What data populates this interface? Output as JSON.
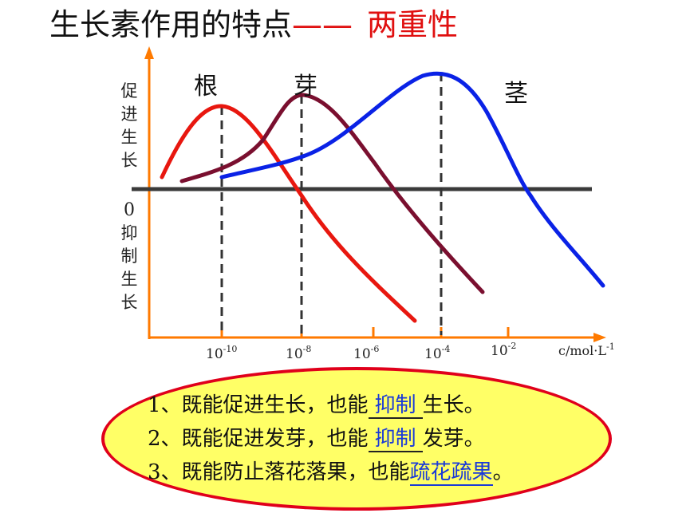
{
  "title": {
    "main": "生长素作用的特点",
    "dash": "——",
    "highlight": "两重性"
  },
  "y_axis": {
    "upper_label": [
      "促",
      "进",
      "生",
      "长"
    ],
    "zero_label": "0",
    "lower_label": [
      "抑",
      "制",
      "生",
      "长"
    ]
  },
  "x_axis": {
    "ticks": [
      {
        "base": "10",
        "exp": "-10"
      },
      {
        "base": "10",
        "exp": "-8"
      },
      {
        "base": "10",
        "exp": "-6"
      },
      {
        "base": "10",
        "exp": "-4"
      },
      {
        "base": "10",
        "exp": "-2"
      }
    ],
    "unit_prefix": "c/mol·L",
    "unit_exp": "-1"
  },
  "curves": [
    {
      "label": "根",
      "color": "#e8170f",
      "optimum": "10^-10"
    },
    {
      "label": "芽",
      "color": "#7a0f2f",
      "optimum": "10^-8"
    },
    {
      "label": "茎",
      "color": "#0a22e6",
      "optimum": "10^-4"
    }
  ],
  "sentences": [
    {
      "prefix": "1、既能促进生长，也能",
      "blank": "抑制",
      "suffix": "生长。"
    },
    {
      "prefix": "2、既能促进发芽，也能",
      "blank": "抑制",
      "suffix": "发芽。"
    },
    {
      "prefix": "3、既能防止落花落果，也能",
      "blank": "疏花疏果",
      "suffix": "。"
    }
  ],
  "colors": {
    "axis": "#ff7a00",
    "baseline": "#3a3a3a",
    "ellipse_fill": "#ffff66",
    "ellipse_border": "#e0001b",
    "answer": "#1a3ad8"
  }
}
